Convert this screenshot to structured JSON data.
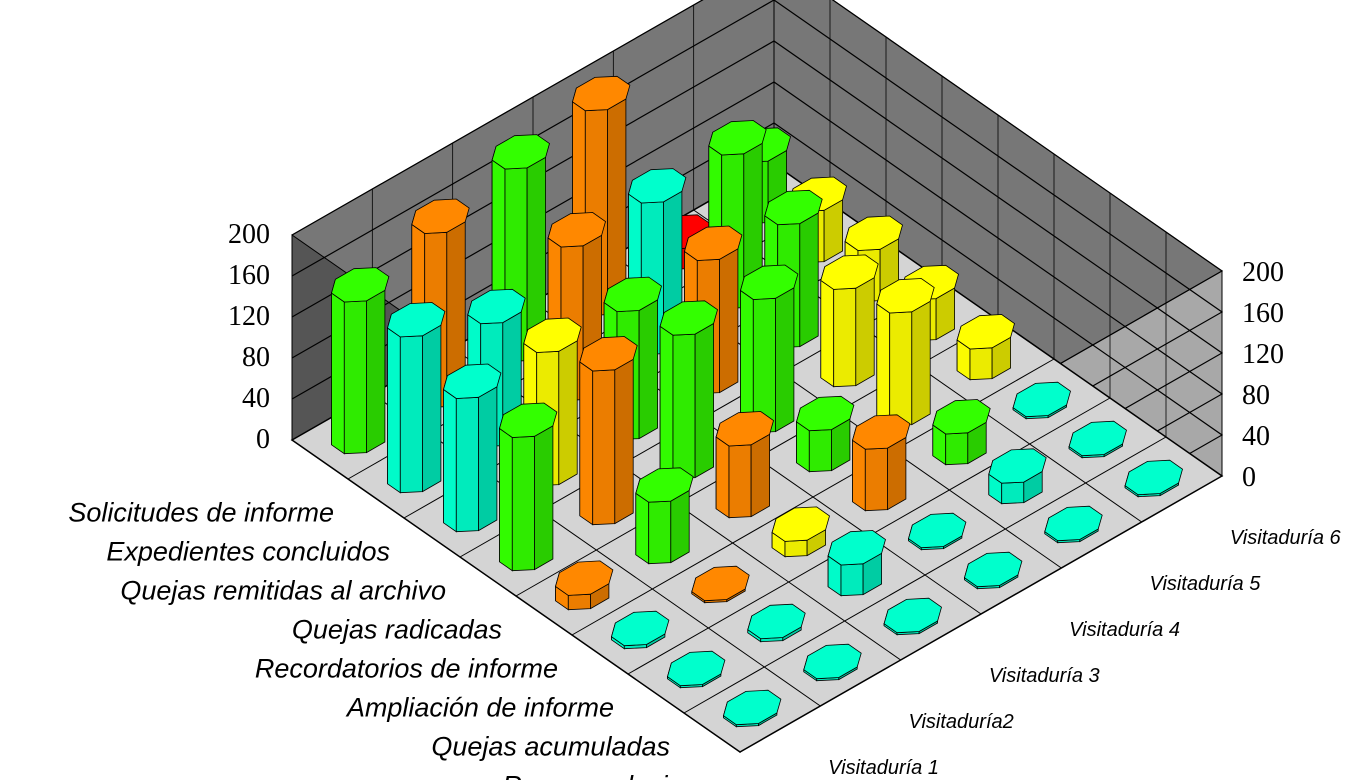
{
  "chart_data": {
    "type": "bar3d",
    "categories": [
      "Solicitudes de informe",
      "Expedientes concluidos",
      "Quejas remitidas al archivo",
      "Quejas radicadas",
      "Recordatorios de informe",
      "Ampliación de informe",
      "Quejas acumuladas",
      "Recomendaciones"
    ],
    "series": [
      {
        "name": "Visitaduría 1",
        "values": [
          148,
          152,
          130,
          130,
          14,
          3,
          2,
          2
        ]
      },
      {
        "name": "Visitaduría2",
        "values": [
          170,
          120,
          130,
          150,
          60,
          2,
          3,
          2
        ]
      },
      {
        "name": "Visitaduría 3",
        "values": [
          188,
          150,
          125,
          140,
          70,
          15,
          30,
          2
        ]
      },
      {
        "name": "Visitaduría 4",
        "values": [
          200,
          148,
          130,
          130,
          40,
          60,
          2,
          2
        ]
      },
      {
        "name": "Visitaduría 5",
        "values": [
          20,
          150,
          120,
          95,
          110,
          30,
          20,
          2
        ]
      },
      {
        "name": "Visitaduría 6",
        "values": [
          60,
          50,
          50,
          40,
          30,
          2,
          2,
          2
        ]
      }
    ],
    "bar_colors": [
      [
        "#33ff00",
        "#00ffcc",
        "#00ffcc",
        "#33ff00",
        "#ff8800",
        "#00ffcc",
        "#00ffcc",
        "#00ffcc"
      ],
      [
        "#ff8800",
        "#00ffcc",
        "#ffff00",
        "#ff8800",
        "#33ff00",
        "#ff8800",
        "#00ffcc",
        "#00ffcc"
      ],
      [
        "#33ff00",
        "#ff8800",
        "#33ff00",
        "#33ff00",
        "#ff8800",
        "#ffff00",
        "#00ffcc",
        "#00ffcc"
      ],
      [
        "#ff8800",
        "#00ffcc",
        "#ff8800",
        "#33ff00",
        "#33ff00",
        "#ff8800",
        "#00ffcc",
        "#00ffcc"
      ],
      [
        "#ff0000",
        "#33ff00",
        "#33ff00",
        "#ffff00",
        "#ffff00",
        "#33ff00",
        "#00ffcc",
        "#00ffcc"
      ],
      [
        "#33ff00",
        "#ffff00",
        "#ffff00",
        "#ffff00",
        "#ffff00",
        "#00ffcc",
        "#00ffcc",
        "#00ffcc"
      ]
    ],
    "zlim": [
      0,
      200
    ],
    "z_ticks": [
      "0",
      "40",
      "80",
      "120",
      "160",
      "200"
    ],
    "grid": true
  }
}
